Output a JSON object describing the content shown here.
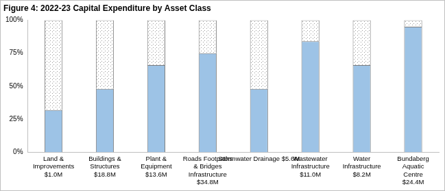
{
  "chart_data": {
    "type": "bar",
    "title": "Figure 4: 2022-23 Capital Expenditure by Asset Class",
    "categories": [
      [
        "Land &",
        "Improvements",
        "$1.0M"
      ],
      [
        "Buildings &",
        "Structures",
        "$18.8M"
      ],
      [
        "Plant &",
        "Equipment",
        "$13.6M"
      ],
      [
        "Roads Footpaths",
        "& Bridges",
        "Infrastructure",
        "$34.8M"
      ],
      [
        "Stormwater Drainage $5.6M"
      ],
      [
        "Wastewater",
        "Infrastructure",
        "$11.0M"
      ],
      [
        "Water",
        "Infrastructure",
        "$8.2M"
      ],
      [
        "Bundaberg",
        "Aquatic",
        "Centre",
        "$24.4M"
      ]
    ],
    "series": [
      {
        "color": "#9dc3e6",
        "values": [
          32,
          48,
          66,
          75,
          48,
          84,
          66,
          95
        ]
      },
      {
        "color": "#ffffff",
        "values": [
          68,
          52,
          34,
          25,
          52,
          16,
          34,
          5
        ]
      }
    ],
    "stacked": true,
    "ylim": [
      0,
      100
    ],
    "yticks": [
      {
        "value": 0,
        "label": "0%"
      },
      {
        "value": 25,
        "label": "25%"
      },
      {
        "value": 50,
        "label": "50%"
      },
      {
        "value": 75,
        "label": "75%"
      },
      {
        "value": 100,
        "label": "100%"
      }
    ],
    "grid": false
  }
}
